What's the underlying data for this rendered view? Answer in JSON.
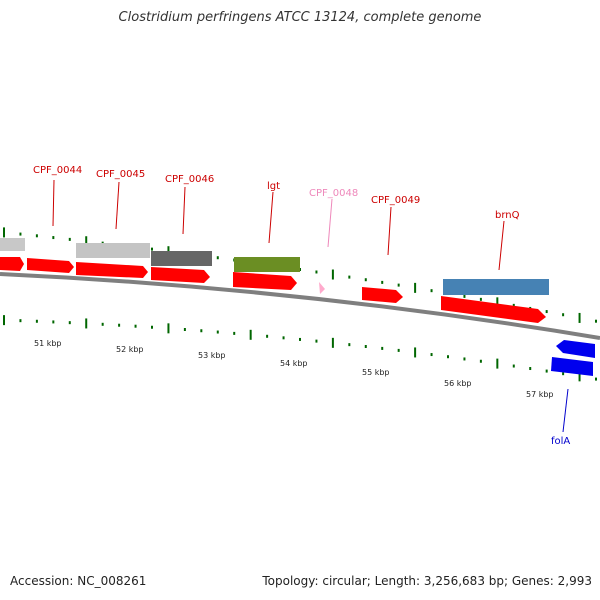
{
  "header": {
    "title": "Clostridium perfringens ATCC 13124, complete genome"
  },
  "footer": {
    "accession": "Accession: NC_008261",
    "summary": "Topology: circular; Length: 3,256,683 bp; Genes: 2,993"
  },
  "colors": {
    "backbone": "#7f7f7f",
    "cds_red": "#ff0000",
    "tick_green": "#006600",
    "label_red": "#cc0000",
    "label_pink": "#ee88bb",
    "label_blue": "#0000cc"
  },
  "genes": [
    {
      "id": "CPF_0044",
      "label": "CPF_0044",
      "color": "#cc0000"
    },
    {
      "id": "CPF_0045",
      "label": "CPF_0045",
      "color": "#cc0000"
    },
    {
      "id": "CPF_0046",
      "label": "CPF_0046",
      "color": "#cc0000"
    },
    {
      "id": "lgt",
      "label": "lgt",
      "color": "#cc0000"
    },
    {
      "id": "CPF_0048",
      "label": "CPF_0048",
      "color": "#ee88bb"
    },
    {
      "id": "CPF_0049",
      "label": "CPF_0049",
      "color": "#cc0000"
    },
    {
      "id": "brnQ",
      "label": "brnQ",
      "color": "#cc0000"
    },
    {
      "id": "folA",
      "label": "folA",
      "color": "#0000cc"
    }
  ],
  "kbp_labels": [
    "51 kbp",
    "52 kbp",
    "53 kbp",
    "54 kbp",
    "55 kbp",
    "56 kbp",
    "57 kbp"
  ]
}
